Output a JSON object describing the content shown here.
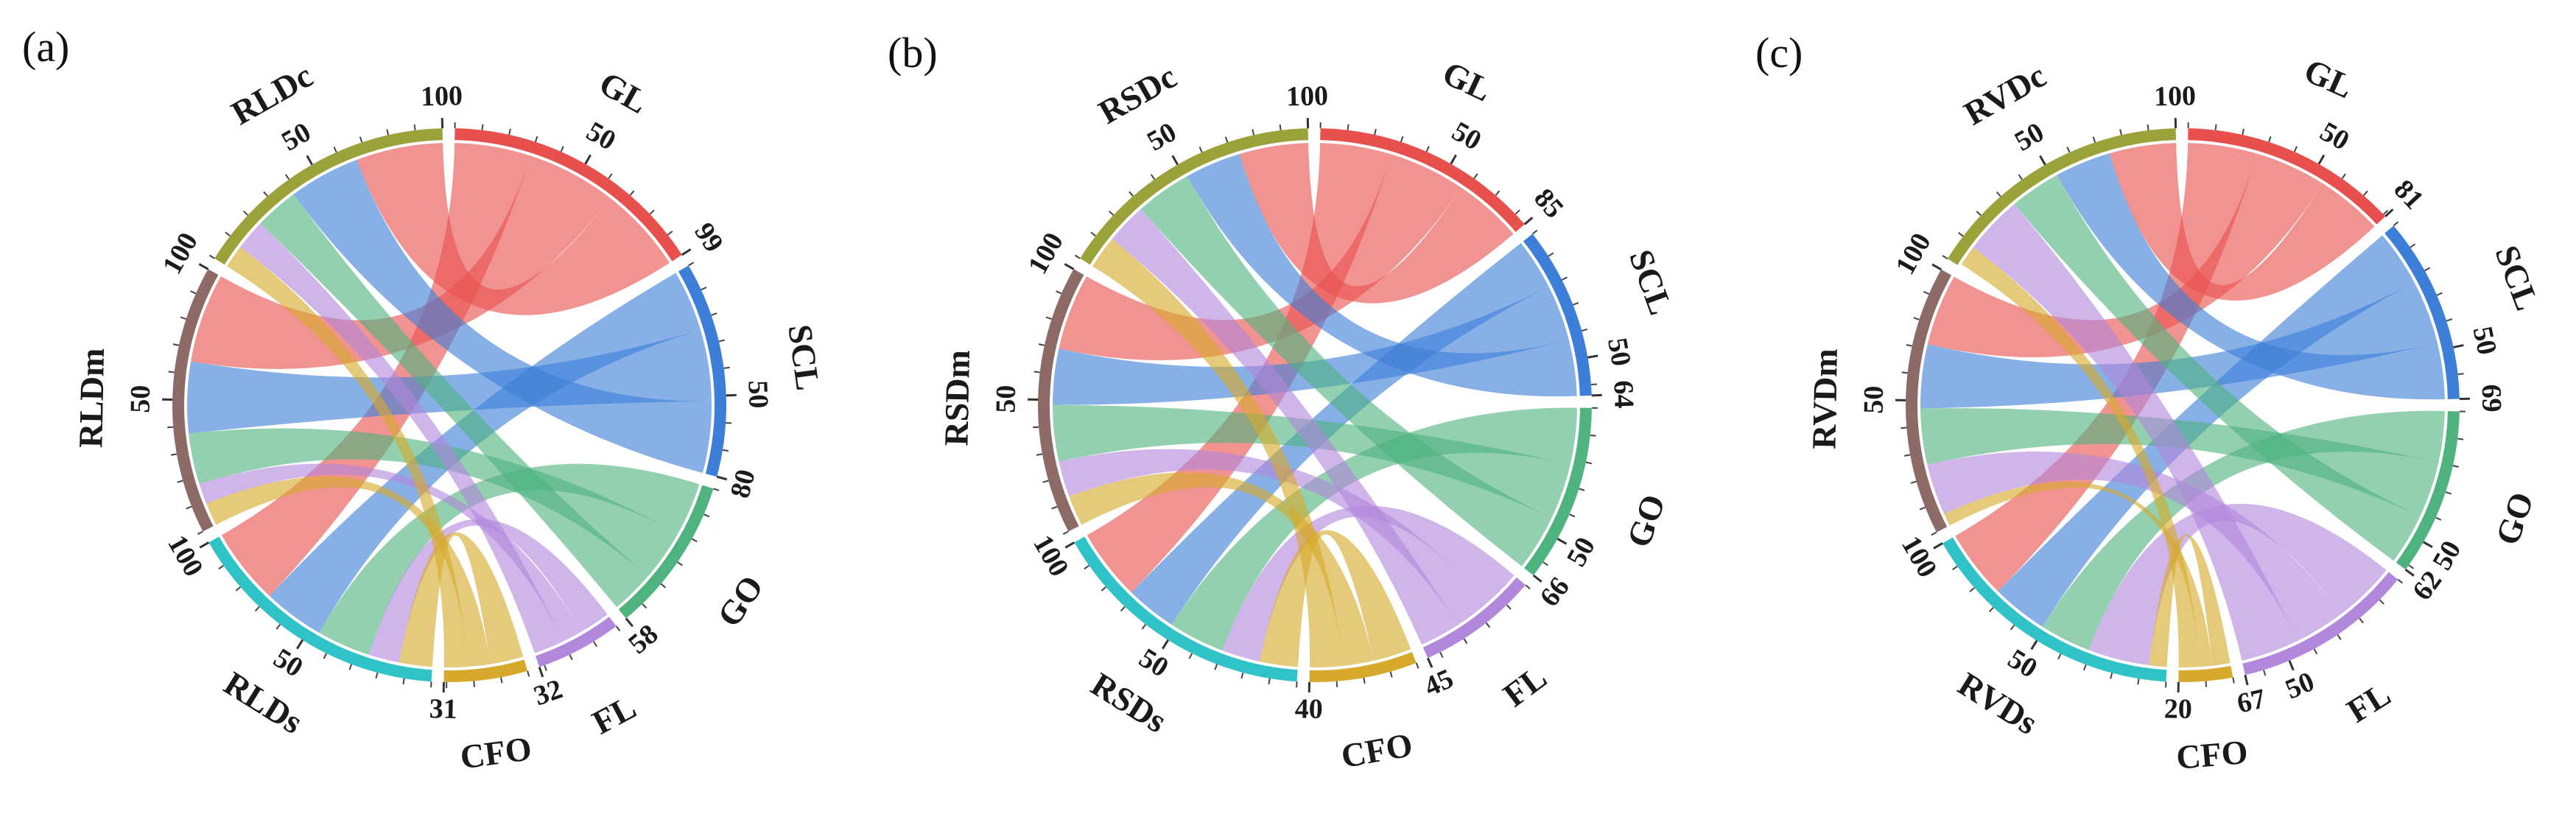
{
  "colors": {
    "GL": "#e8504e",
    "SCL": "#3d7fd8",
    "GO": "#4fb37f",
    "FL": "#b188dc",
    "CFO": "#d6a92b",
    "S": "#2fc3c7",
    "M": "#8e6a66",
    "C": "#9ba23a"
  },
  "chart_data": [
    {
      "type": "chord",
      "panel_label": "(a)",
      "sectors": [
        {
          "name": "GL",
          "max": 99,
          "color": "GL",
          "ticks": [
            50,
            99
          ]
        },
        {
          "name": "SCL",
          "max": 80,
          "color": "SCL",
          "ticks": [
            50,
            80
          ]
        },
        {
          "name": "GO",
          "max": 58,
          "color": "GO",
          "ticks": [
            58
          ]
        },
        {
          "name": "FL",
          "max": 32,
          "color": "FL",
          "ticks": [
            32
          ]
        },
        {
          "name": "CFO",
          "max": 31,
          "color": "CFO",
          "ticks": [
            31
          ]
        },
        {
          "name": "RLDs",
          "max": 100,
          "color": "S",
          "ticks": [
            50,
            100
          ]
        },
        {
          "name": "RLDm",
          "max": 100,
          "color": "M",
          "ticks": [
            50,
            100
          ]
        },
        {
          "name": "RLDc",
          "max": 100,
          "color": "C",
          "ticks": [
            50,
            100
          ]
        }
      ],
      "links": [
        {
          "from": "GL",
          "to": "RLDs",
          "value": 30
        },
        {
          "from": "GL",
          "to": "RLDm",
          "value": 35
        },
        {
          "from": "GL",
          "to": "RLDc",
          "value": 34
        },
        {
          "from": "SCL",
          "to": "RLDs",
          "value": 24
        },
        {
          "from": "SCL",
          "to": "RLDm",
          "value": 28
        },
        {
          "from": "SCL",
          "to": "RLDc",
          "value": 28
        },
        {
          "from": "GO",
          "to": "RLDs",
          "value": 21
        },
        {
          "from": "GO",
          "to": "RLDm",
          "value": 20
        },
        {
          "from": "GO",
          "to": "RLDc",
          "value": 17
        },
        {
          "from": "FL",
          "to": "RLDs",
          "value": 12
        },
        {
          "from": "FL",
          "to": "RLDm",
          "value": 8
        },
        {
          "from": "FL",
          "to": "RLDc",
          "value": 12
        },
        {
          "from": "CFO",
          "to": "RLDs",
          "value": 13
        },
        {
          "from": "CFO",
          "to": "RLDm",
          "value": 9
        },
        {
          "from": "CFO",
          "to": "RLDc",
          "value": 9
        }
      ]
    },
    {
      "type": "chord",
      "panel_label": "(b)",
      "sectors": [
        {
          "name": "GL",
          "max": 85,
          "color": "GL",
          "ticks": [
            50,
            85
          ]
        },
        {
          "name": "SCL",
          "max": 64,
          "color": "SCL",
          "ticks": [
            50,
            64
          ]
        },
        {
          "name": "GO",
          "max": 66,
          "color": "GO",
          "ticks": [
            50,
            66
          ]
        },
        {
          "name": "FL",
          "max": 45,
          "color": "FL",
          "ticks": [
            45
          ]
        },
        {
          "name": "CFO",
          "max": 40,
          "color": "CFO",
          "ticks": [
            40
          ]
        },
        {
          "name": "RSDs",
          "max": 100,
          "color": "S",
          "ticks": [
            50,
            100
          ]
        },
        {
          "name": "RSDm",
          "max": 100,
          "color": "M",
          "ticks": [
            50,
            100
          ]
        },
        {
          "name": "RSDc",
          "max": 100,
          "color": "C",
          "ticks": [
            50,
            100
          ]
        }
      ],
      "links": [
        {
          "from": "GL",
          "to": "RSDs",
          "value": 28
        },
        {
          "from": "GL",
          "to": "RSDm",
          "value": 30
        },
        {
          "from": "GL",
          "to": "RSDc",
          "value": 27
        },
        {
          "from": "SCL",
          "to": "RSDs",
          "value": 20
        },
        {
          "from": "SCL",
          "to": "RSDm",
          "value": 22
        },
        {
          "from": "SCL",
          "to": "RSDc",
          "value": 22
        },
        {
          "from": "GO",
          "to": "RSDs",
          "value": 22
        },
        {
          "from": "GO",
          "to": "RSDm",
          "value": 22
        },
        {
          "from": "GO",
          "to": "RSDc",
          "value": 22
        },
        {
          "from": "FL",
          "to": "RSDs",
          "value": 15
        },
        {
          "from": "FL",
          "to": "RSDm",
          "value": 14
        },
        {
          "from": "FL",
          "to": "RSDc",
          "value": 16
        },
        {
          "from": "CFO",
          "to": "RSDs",
          "value": 15
        },
        {
          "from": "CFO",
          "to": "RSDm",
          "value": 12
        },
        {
          "from": "CFO",
          "to": "RSDc",
          "value": 13
        }
      ]
    },
    {
      "type": "chord",
      "panel_label": "(c)",
      "sectors": [
        {
          "name": "GL",
          "max": 81,
          "color": "GL",
          "ticks": [
            50,
            81
          ]
        },
        {
          "name": "SCL",
          "max": 69,
          "color": "SCL",
          "ticks": [
            50,
            69
          ]
        },
        {
          "name": "GO",
          "max": 62,
          "color": "GO",
          "ticks": [
            50,
            62
          ]
        },
        {
          "name": "FL",
          "max": 67,
          "color": "FL",
          "ticks": [
            50,
            67
          ]
        },
        {
          "name": "CFO",
          "max": 20,
          "color": "CFO",
          "ticks": [
            20
          ]
        },
        {
          "name": "RVDs",
          "max": 100,
          "color": "S",
          "ticks": [
            50,
            100
          ]
        },
        {
          "name": "RVDm",
          "max": 100,
          "color": "M",
          "ticks": [
            50,
            100
          ]
        },
        {
          "name": "RVDc",
          "max": 100,
          "color": "C",
          "ticks": [
            50,
            100
          ]
        }
      ],
      "links": [
        {
          "from": "GL",
          "to": "RVDs",
          "value": 27
        },
        {
          "from": "GL",
          "to": "RVDm",
          "value": 28
        },
        {
          "from": "GL",
          "to": "RVDc",
          "value": 26
        },
        {
          "from": "SCL",
          "to": "RVDs",
          "value": 22
        },
        {
          "from": "SCL",
          "to": "RVDm",
          "value": 25
        },
        {
          "from": "SCL",
          "to": "RVDc",
          "value": 22
        },
        {
          "from": "GO",
          "to": "RVDs",
          "value": 20
        },
        {
          "from": "GO",
          "to": "RVDm",
          "value": 22
        },
        {
          "from": "GO",
          "to": "RVDc",
          "value": 20
        },
        {
          "from": "FL",
          "to": "RVDs",
          "value": 24
        },
        {
          "from": "FL",
          "to": "RVDm",
          "value": 20
        },
        {
          "from": "FL",
          "to": "RVDc",
          "value": 23
        },
        {
          "from": "CFO",
          "to": "RVDs",
          "value": 7
        },
        {
          "from": "CFO",
          "to": "RVDm",
          "value": 5
        },
        {
          "from": "CFO",
          "to": "RVDc",
          "value": 8
        }
      ]
    }
  ]
}
